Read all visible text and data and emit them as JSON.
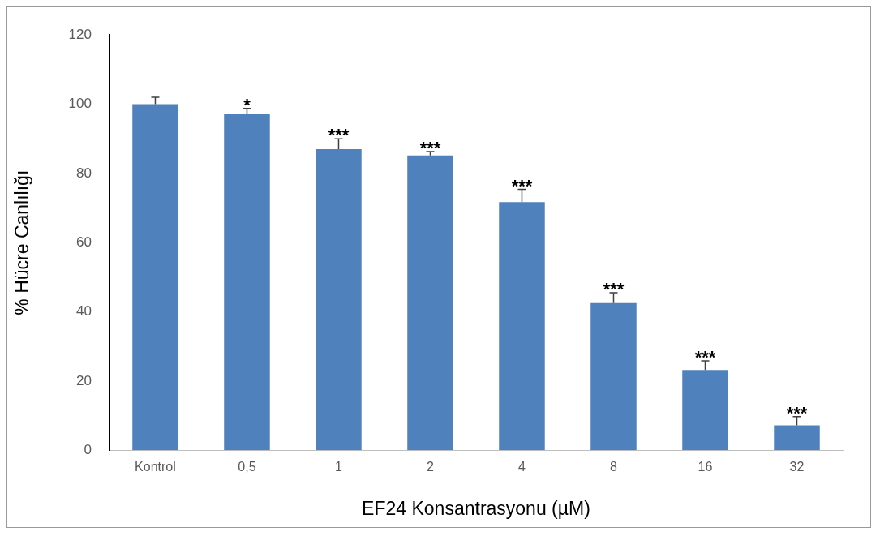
{
  "chart_data": {
    "type": "bar",
    "xlabel": "EF24 Konsantrasyonu (µM)",
    "ylabel": "% Hücre Canlılığı",
    "categories": [
      "Kontrol",
      "0,5",
      "1",
      "2",
      "4",
      "8",
      "16",
      "32"
    ],
    "values": [
      100,
      97.2,
      87,
      85.2,
      71.7,
      42.5,
      23.2,
      7.2
    ],
    "errors": [
      [
        100,
        102
      ],
      [
        97.2,
        98.8
      ],
      [
        87,
        90
      ],
      [
        85.2,
        86.3
      ],
      [
        71.7,
        75.4
      ],
      [
        42.5,
        45.5
      ],
      [
        23.2,
        25.8
      ],
      [
        7.2,
        9.7
      ]
    ],
    "color": "#4f81bd",
    "ylim": [
      0,
      120
    ],
    "yticks": [
      0,
      20,
      40,
      60,
      80,
      100,
      120
    ],
    "grid": false,
    "legend": false,
    "annotations": [
      {
        "text": "*",
        "x": "0,5",
        "y": 98.8
      },
      {
        "text": "***",
        "x": "1",
        "y": 90
      },
      {
        "text": "***",
        "x": "2",
        "y": 86.3
      },
      {
        "text": "***",
        "x": "4",
        "y": 75.4
      },
      {
        "text": "***",
        "x": "8",
        "y": 45.5
      },
      {
        "text": "***",
        "x": "16",
        "y": 25.8
      },
      {
        "text": "***",
        "x": "32",
        "y": 9.7
      }
    ]
  }
}
